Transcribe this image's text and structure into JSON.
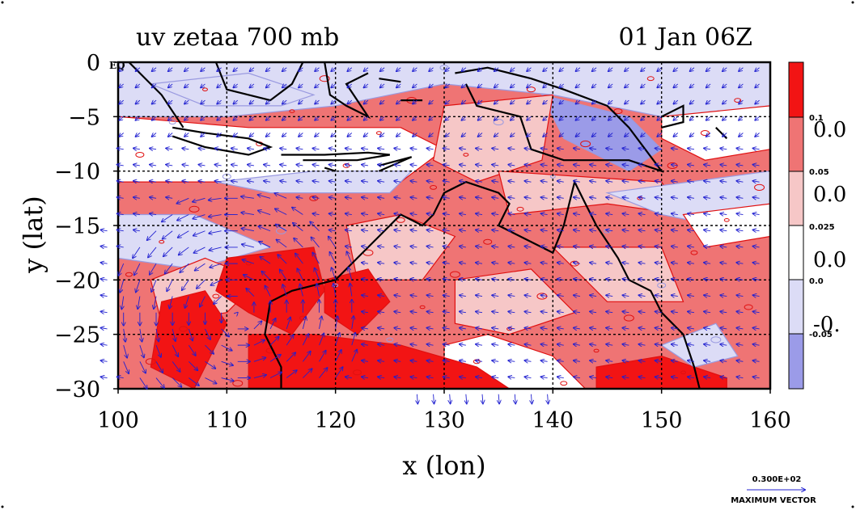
{
  "figure": {
    "title_left": "uv zetaa 700 mb",
    "title_right": "01 Jan 06Z",
    "xlabel": "x (lon)",
    "ylabel": "y (lat)",
    "eq_tag": "EQ"
  },
  "colorbar": {
    "labels": [
      "0.1",
      "0.05",
      "0.025",
      "0.0",
      "-0.05"
    ],
    "overflow_labels": [
      "0.0",
      "0.0",
      "0.0",
      "-0."
    ]
  },
  "legend_vector": {
    "value": "0.300E+02",
    "label": "MAXIMUM VECTOR"
  },
  "colors": {
    "strong_pos": "#f21414",
    "mid_pos": "#ef7474",
    "weak_pos": "#f6c7c7",
    "neutral": "#ffffff",
    "weak_neg": "#dcdcf6",
    "strong_neg": "#9b9be8",
    "contour_red": "#e01010",
    "contour_blue": "#9a9ae0",
    "vector": "#2020d0"
  },
  "chart_data": {
    "type": "heatmap",
    "title": "uv zetaa 700 mb",
    "subtitle": "01 Jan 06Z",
    "xlabel": "x (lon)",
    "ylabel": "y (lat)",
    "xlim": [
      100,
      160
    ],
    "ylim": [
      -30,
      0
    ],
    "x_ticks": [
      100,
      110,
      120,
      130,
      140,
      150,
      160
    ],
    "y_ticks": [
      0,
      -5,
      -10,
      -15,
      -20,
      -25,
      -30
    ],
    "y_tick_labels": [
      "0",
      "−5",
      "−10",
      "−15",
      "−20",
      "−25",
      "−30"
    ],
    "grid": true,
    "contour_levels": [
      -0.05,
      0.0,
      0.025,
      0.05,
      0.1
    ],
    "vector_field": "uv wind 700 mb",
    "max_vector": 30
  }
}
